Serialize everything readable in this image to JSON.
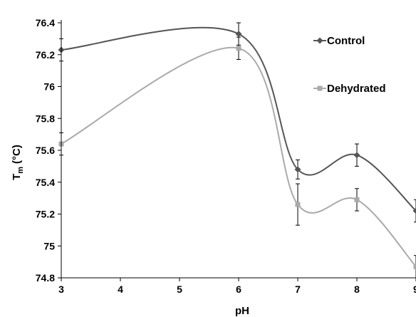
{
  "chart_data": {
    "type": "line",
    "xlabel": "pH",
    "ylabel_main": "T",
    "ylabel_sub": "m",
    "ylabel_unit": "(°C)",
    "xlim": [
      3,
      9
    ],
    "ylim": [
      74.8,
      76.4
    ],
    "x_ticks": [
      3,
      4,
      5,
      6,
      7,
      8,
      9
    ],
    "x_tick_labels": [
      "3",
      "4",
      "5",
      "6",
      "7",
      "8",
      "9"
    ],
    "y_ticks": [
      74.8,
      75,
      75.2,
      75.4,
      75.6,
      75.8,
      76,
      76.2,
      76.4
    ],
    "y_tick_labels": [
      "74.8",
      "75",
      "75.2",
      "75.4",
      "75.6",
      "75.8",
      "76",
      "76.2",
      "76.4"
    ],
    "grid": false,
    "smooth": true,
    "legend_position": "right",
    "series": [
      {
        "name": "Control",
        "color": "#555555",
        "marker": "diamond",
        "x": [
          3,
          6,
          7,
          8,
          9
        ],
        "y": [
          76.23,
          76.33,
          75.48,
          75.57,
          75.22
        ],
        "err": [
          0.07,
          0.07,
          0.06,
          0.07,
          0.07
        ]
      },
      {
        "name": "Dehydrated",
        "color": "#aaaaaa",
        "marker": "square",
        "x": [
          3,
          6,
          7,
          8,
          9
        ],
        "y": [
          75.64,
          76.24,
          75.26,
          75.29,
          74.87
        ],
        "err": [
          0.07,
          0.07,
          0.13,
          0.07,
          0.07
        ]
      }
    ]
  }
}
